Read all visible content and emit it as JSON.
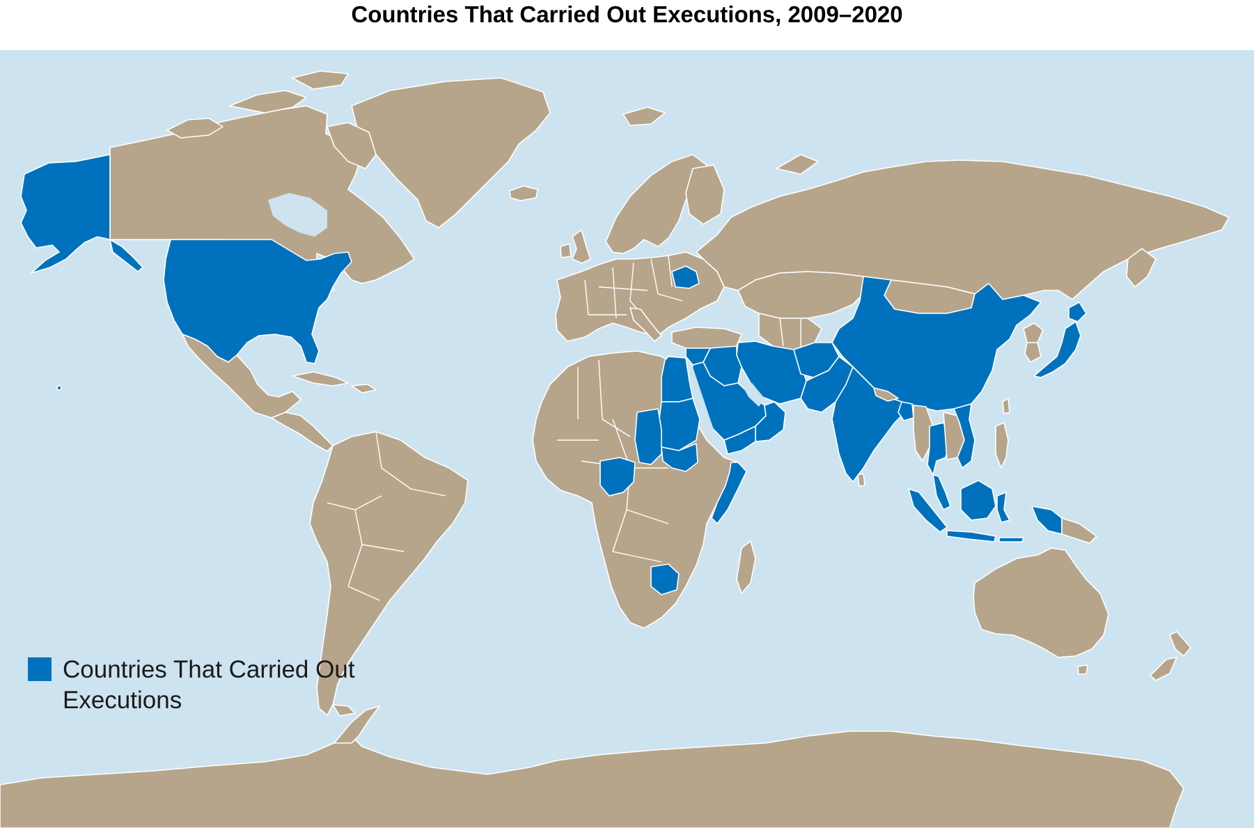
{
  "title": "Countries That Carried Out Executions, 2009–2020",
  "colors": {
    "ocean": "#cde3f0",
    "land": "#b7a58b",
    "highlight": "#0072bd",
    "borders": "#ffffff"
  },
  "legend": {
    "items": [
      {
        "label": "Countries That Carried Out Executions",
        "color": "#0072bd"
      }
    ]
  },
  "highlighted_regions": [
    "United States",
    "Belarus",
    "Egypt",
    "Sudan",
    "South Sudan",
    "Chad",
    "Nigeria",
    "Somalia",
    "Botswana",
    "Saudi Arabia",
    "Yemen",
    "Oman",
    "United Arab Emirates",
    "Iran",
    "Iraq",
    "Syria",
    "Afghanistan",
    "Pakistan",
    "India",
    "Bangladesh",
    "China",
    "Japan",
    "Thailand",
    "Vietnam",
    "Malaysia",
    "Singapore",
    "Indonesia"
  ]
}
